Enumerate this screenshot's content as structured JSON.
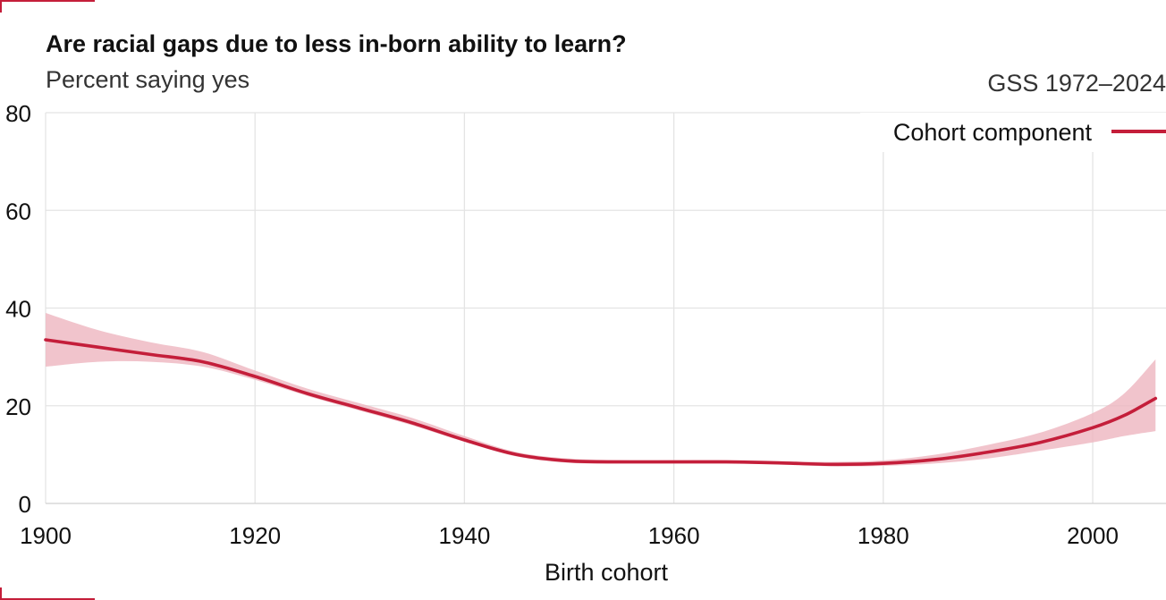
{
  "header": {
    "title": "Are racial gaps due to less in-born ability to learn?",
    "subtitle": "Percent saying yes",
    "source": "GSS 1972–2024"
  },
  "colors": {
    "line": "#c41e3a",
    "band": "#eeb5bf",
    "grid": "#e4e4e4",
    "accent": "#c41e3a"
  },
  "chart_data": {
    "type": "line",
    "title": "Are racial gaps due to less in-born ability to learn?",
    "subtitle": "Percent saying yes",
    "xlabel": "Birth cohort",
    "ylabel": "",
    "xlim": [
      1900,
      2007
    ],
    "ylim": [
      0,
      80
    ],
    "x_ticks": [
      1900,
      1920,
      1940,
      1960,
      1980,
      2000
    ],
    "x_tick_labels": [
      "1900",
      "1920",
      "1940",
      "1960",
      "1980",
      "2000"
    ],
    "y_ticks": [
      0,
      20,
      40,
      60,
      80
    ],
    "y_tick_labels": [
      "0",
      "20",
      "40",
      "60",
      "80"
    ],
    "grid": true,
    "legend_position": "top-right",
    "series": [
      {
        "name": "Cohort component",
        "x": [
          1900,
          1905,
          1910,
          1915,
          1920,
          1925,
          1930,
          1935,
          1940,
          1945,
          1950,
          1955,
          1960,
          1965,
          1970,
          1975,
          1980,
          1985,
          1990,
          1995,
          2000,
          2003,
          2006
        ],
        "y": [
          33.5,
          32.0,
          30.5,
          29.0,
          26.0,
          22.5,
          19.5,
          16.5,
          13.0,
          10.0,
          8.7,
          8.5,
          8.5,
          8.5,
          8.3,
          8.0,
          8.2,
          9.0,
          10.5,
          12.5,
          15.5,
          18.0,
          21.5
        ],
        "lower": [
          28.0,
          29.0,
          29.0,
          28.0,
          25.3,
          22.0,
          19.0,
          16.0,
          12.6,
          9.6,
          8.3,
          8.2,
          8.2,
          8.2,
          8.0,
          7.6,
          7.7,
          8.2,
          9.2,
          10.8,
          12.5,
          13.8,
          14.8
        ],
        "upper": [
          39.0,
          35.5,
          33.0,
          31.0,
          27.2,
          23.5,
          20.5,
          17.5,
          13.8,
          10.5,
          9.2,
          8.9,
          8.9,
          8.9,
          8.7,
          8.5,
          8.8,
          10.0,
          12.0,
          14.5,
          18.5,
          22.5,
          29.5
        ]
      }
    ]
  }
}
